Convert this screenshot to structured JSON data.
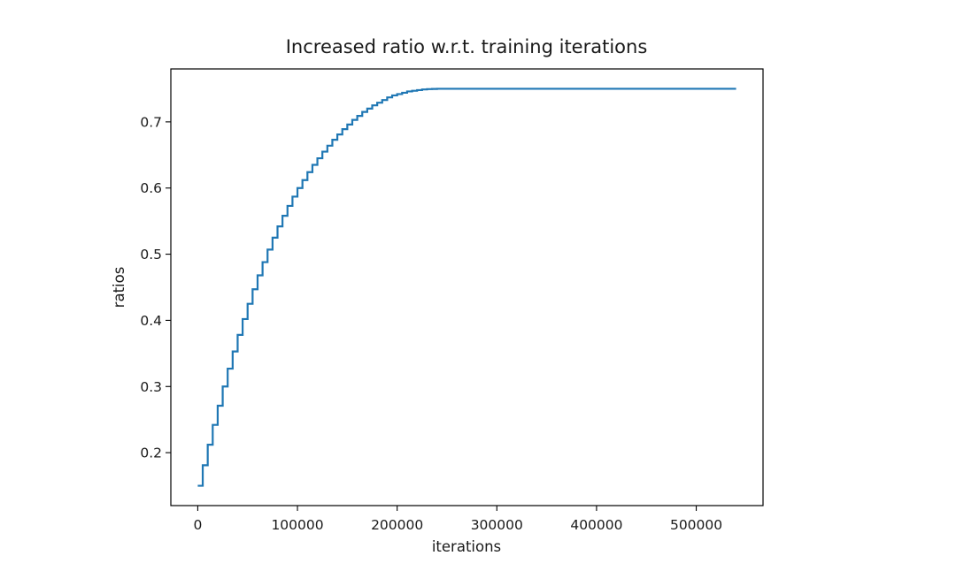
{
  "chart_data": {
    "type": "line",
    "title": "Increased ratio w.r.t. training iterations",
    "xlabel": "iterations",
    "ylabel": "ratios",
    "xlim": [
      -27000,
      567000
    ],
    "ylim": [
      0.12,
      0.78
    ],
    "xticks": [
      0,
      100000,
      200000,
      300000,
      400000,
      500000
    ],
    "xtick_labels": [
      "0",
      "100000",
      "200000",
      "300000",
      "400000",
      "500000"
    ],
    "yticks": [
      0.2,
      0.3,
      0.4,
      0.5,
      0.6,
      0.7
    ],
    "ytick_labels": [
      "0.2",
      "0.3",
      "0.4",
      "0.5",
      "0.6",
      "0.7"
    ],
    "grid": false,
    "line_style": "steps-post",
    "series_color": "#1f77b4",
    "series": [
      {
        "x": [
          0,
          5000,
          10000,
          15000,
          20000,
          25000,
          30000,
          35000,
          40000,
          45000,
          50000,
          55000,
          60000,
          65000,
          70000,
          75000,
          80000,
          85000,
          90000,
          95000,
          100000,
          105000,
          110000,
          115000,
          120000,
          125000,
          130000,
          135000,
          140000,
          145000,
          150000,
          155000,
          160000,
          165000,
          170000,
          175000,
          180000,
          185000,
          190000,
          195000,
          200000,
          205000,
          210000,
          215000,
          220000,
          225000,
          230000,
          235000,
          240000,
          245000,
          250000,
          540000
        ],
        "y": [
          0.15,
          0.181,
          0.212,
          0.242,
          0.271,
          0.3,
          0.327,
          0.353,
          0.378,
          0.402,
          0.425,
          0.447,
          0.468,
          0.488,
          0.507,
          0.525,
          0.542,
          0.558,
          0.573,
          0.587,
          0.6,
          0.612,
          0.624,
          0.635,
          0.645,
          0.655,
          0.664,
          0.673,
          0.681,
          0.689,
          0.696,
          0.703,
          0.709,
          0.715,
          0.72,
          0.725,
          0.729,
          0.733,
          0.737,
          0.74,
          0.742,
          0.744,
          0.746,
          0.747,
          0.748,
          0.749,
          0.7495,
          0.7498,
          0.75,
          0.75,
          0.75,
          0.75
        ]
      }
    ]
  }
}
